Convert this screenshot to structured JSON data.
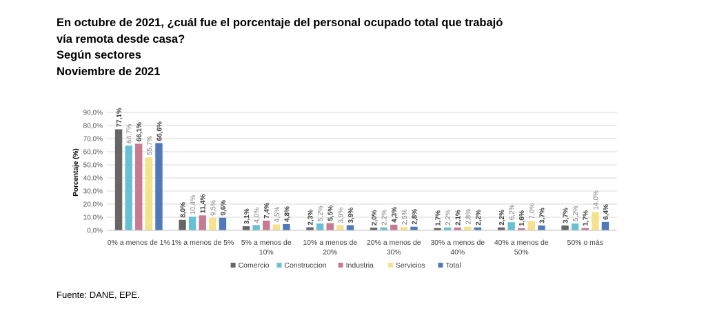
{
  "title_lines": [
    "En octubre de 2021, ¿cuál fue el porcentaje del personal ocupado total que trabajó",
    "vía remota desde casa?",
    "Según sectores",
    "Noviembre de 2021"
  ],
  "source": "Fuente: DANE, EPE.",
  "chart_data": {
    "type": "bar",
    "title": "",
    "xlabel": "",
    "ylabel": "Porcentaje (%)",
    "ylim": [
      0,
      90
    ],
    "yticks": [
      "0,0%",
      "10,0%",
      "20,0%",
      "30,0%",
      "40,0%",
      "50,0%",
      "60,0%",
      "70,0%",
      "80,0%",
      "90,0%"
    ],
    "grid": true,
    "legend_position": "bottom",
    "categories": [
      [
        "0% a menos de 1%"
      ],
      [
        "1% a menos de 5%"
      ],
      [
        "5% a menos de",
        "10%"
      ],
      [
        "10% a menos de",
        "20%"
      ],
      [
        "20% a menos de",
        "30%"
      ],
      [
        "30% a menos de",
        "40%"
      ],
      [
        "40% a menos de",
        "50%"
      ],
      [
        "50% o más"
      ]
    ],
    "series": [
      {
        "name": "Comercio",
        "color": "#666666",
        "values": [
          77.1,
          8.0,
          3.1,
          2.3,
          2.0,
          1.7,
          2.2,
          3.7
        ],
        "labels": [
          "77,1%",
          "8,0%",
          "3,1%",
          "2,3%",
          "2,0%",
          "1,7%",
          "2,2%",
          "3,7%"
        ]
      },
      {
        "name": "Construccion",
        "color": "#67C1D5",
        "values": [
          64.7,
          10.4,
          4.0,
          5.2,
          2.2,
          2.2,
          6.2,
          5.2
        ],
        "labels": [
          "64,7%",
          "10,4%",
          "4,0%",
          "5,2%",
          "2,2%",
          "2,2%",
          "6,2%",
          "5,2%"
        ]
      },
      {
        "name": "Industria",
        "color": "#C77A92",
        "values": [
          66.1,
          11.4,
          7.4,
          5.5,
          4.3,
          2.1,
          1.6,
          1.7
        ],
        "labels": [
          "66,1%",
          "11,4%",
          "7,4%",
          "5,5%",
          "4,3%",
          "2,1%",
          "1,6%",
          "1,7%"
        ]
      },
      {
        "name": "Servicios",
        "color": "#F4E28C",
        "values": [
          55.7,
          9.5,
          4.5,
          3.9,
          2.5,
          2.8,
          7.0,
          14.0
        ],
        "labels": [
          "55,7%",
          "9,5%",
          "4,5%",
          "3,9%",
          "2,5%",
          "2,8%",
          "7,0%",
          "14,0%"
        ]
      },
      {
        "name": "Total",
        "color": "#4F79B9",
        "values": [
          66.6,
          9.6,
          4.8,
          3.9,
          2.8,
          2.2,
          3.7,
          6.4
        ],
        "labels": [
          "66,6%",
          "9,6%",
          "4,8%",
          "3,9%",
          "2,8%",
          "2,2%",
          "3,7%",
          "6,4%"
        ]
      }
    ]
  }
}
